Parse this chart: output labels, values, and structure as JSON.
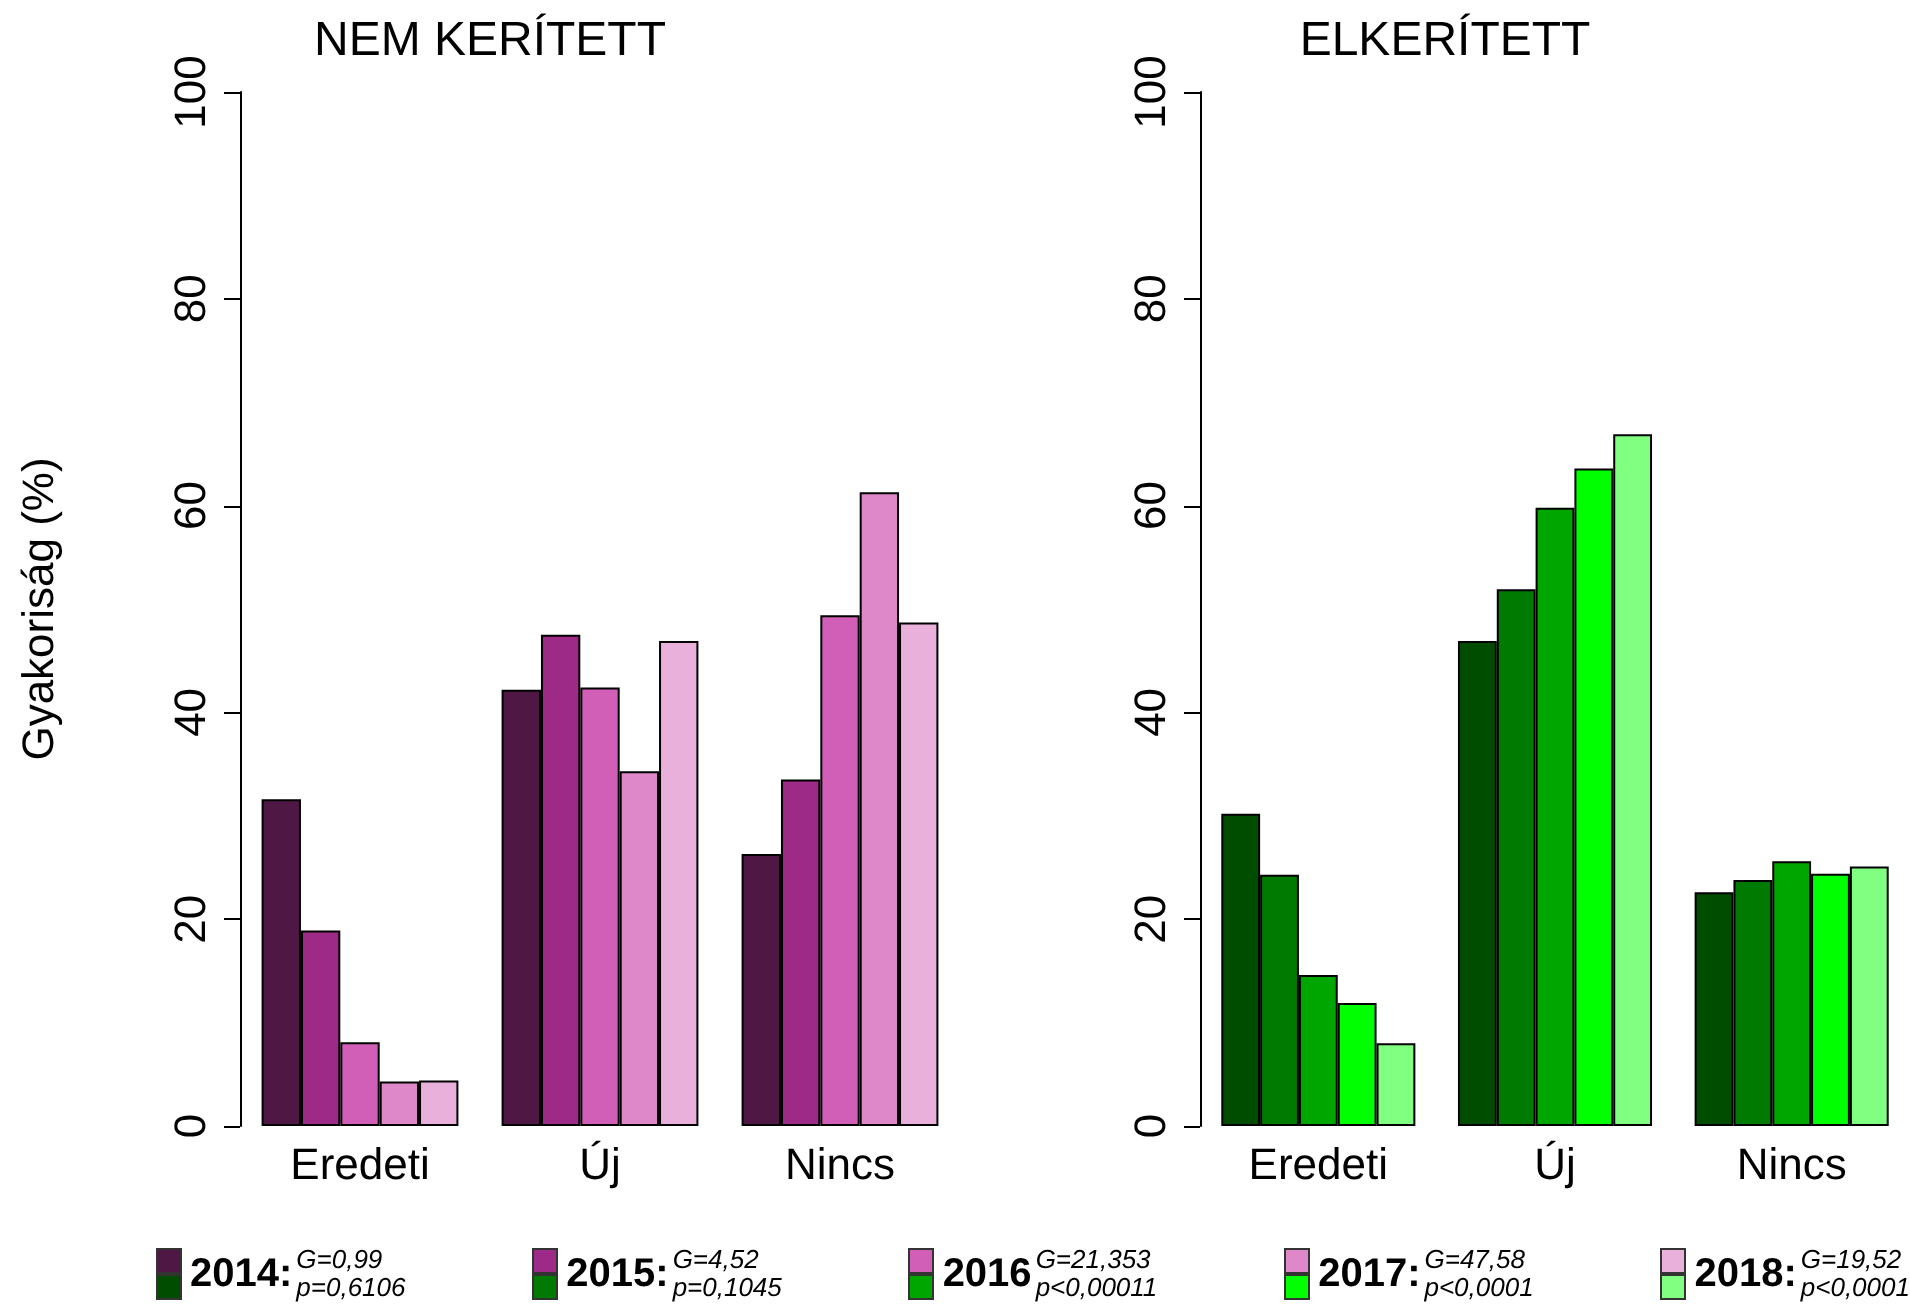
{
  "chart_data": [
    {
      "type": "bar",
      "title": "NEM KERÍTETT",
      "ylabel": "Gyakoriság (%)",
      "categories": [
        "Eredeti",
        "Új",
        "Nincs"
      ],
      "series": [
        {
          "name": "2014:",
          "color": "#4f1744",
          "values": [
            31.6,
            42.2,
            26.3
          ]
        },
        {
          "name": "2015:",
          "color": "#9c2a86",
          "values": [
            18.9,
            47.5,
            33.5
          ]
        },
        {
          "name": "2016",
          "color": "#d15fb8",
          "values": [
            8.1,
            42.4,
            49.4
          ]
        },
        {
          "name": "2017:",
          "color": "#de88c9",
          "values": [
            4.3,
            34.3,
            61.3
          ]
        },
        {
          "name": "2018:",
          "color": "#e9b0dc",
          "values": [
            4.4,
            46.9,
            48.7
          ]
        }
      ],
      "ylim": [
        0,
        100
      ],
      "yticks": [
        0,
        20,
        40,
        60,
        80,
        100
      ],
      "grid": false,
      "legend": "bottom",
      "annotations": [
        "G=0,99\np=0,6106",
        "G=4,52\np=0,1045",
        "G=21,353\np<0,00011",
        "G=47,58\np<0,0001",
        "G=19,52\np<0,0001"
      ]
    },
    {
      "type": "bar",
      "title": "ELKERÍTETT",
      "categories": [
        "Eredeti",
        "Új",
        "Nincs"
      ],
      "series": [
        {
          "color": "#004d00",
          "values": [
            30.2,
            46.9,
            22.6
          ]
        },
        {
          "color": "#007a00",
          "values": [
            24.3,
            51.9,
            23.8
          ]
        },
        {
          "color": "#00a600",
          "values": [
            14.6,
            59.8,
            25.6
          ]
        },
        {
          "color": "#00ff00",
          "values": [
            11.9,
            63.6,
            24.4
          ]
        },
        {
          "color": "#80ff80",
          "values": [
            8.0,
            66.9,
            25.1
          ]
        }
      ],
      "ylim": [
        0,
        100
      ],
      "yticks": [
        0,
        20,
        40,
        60,
        80,
        100
      ],
      "grid": false,
      "legend": "bottom"
    }
  ]
}
